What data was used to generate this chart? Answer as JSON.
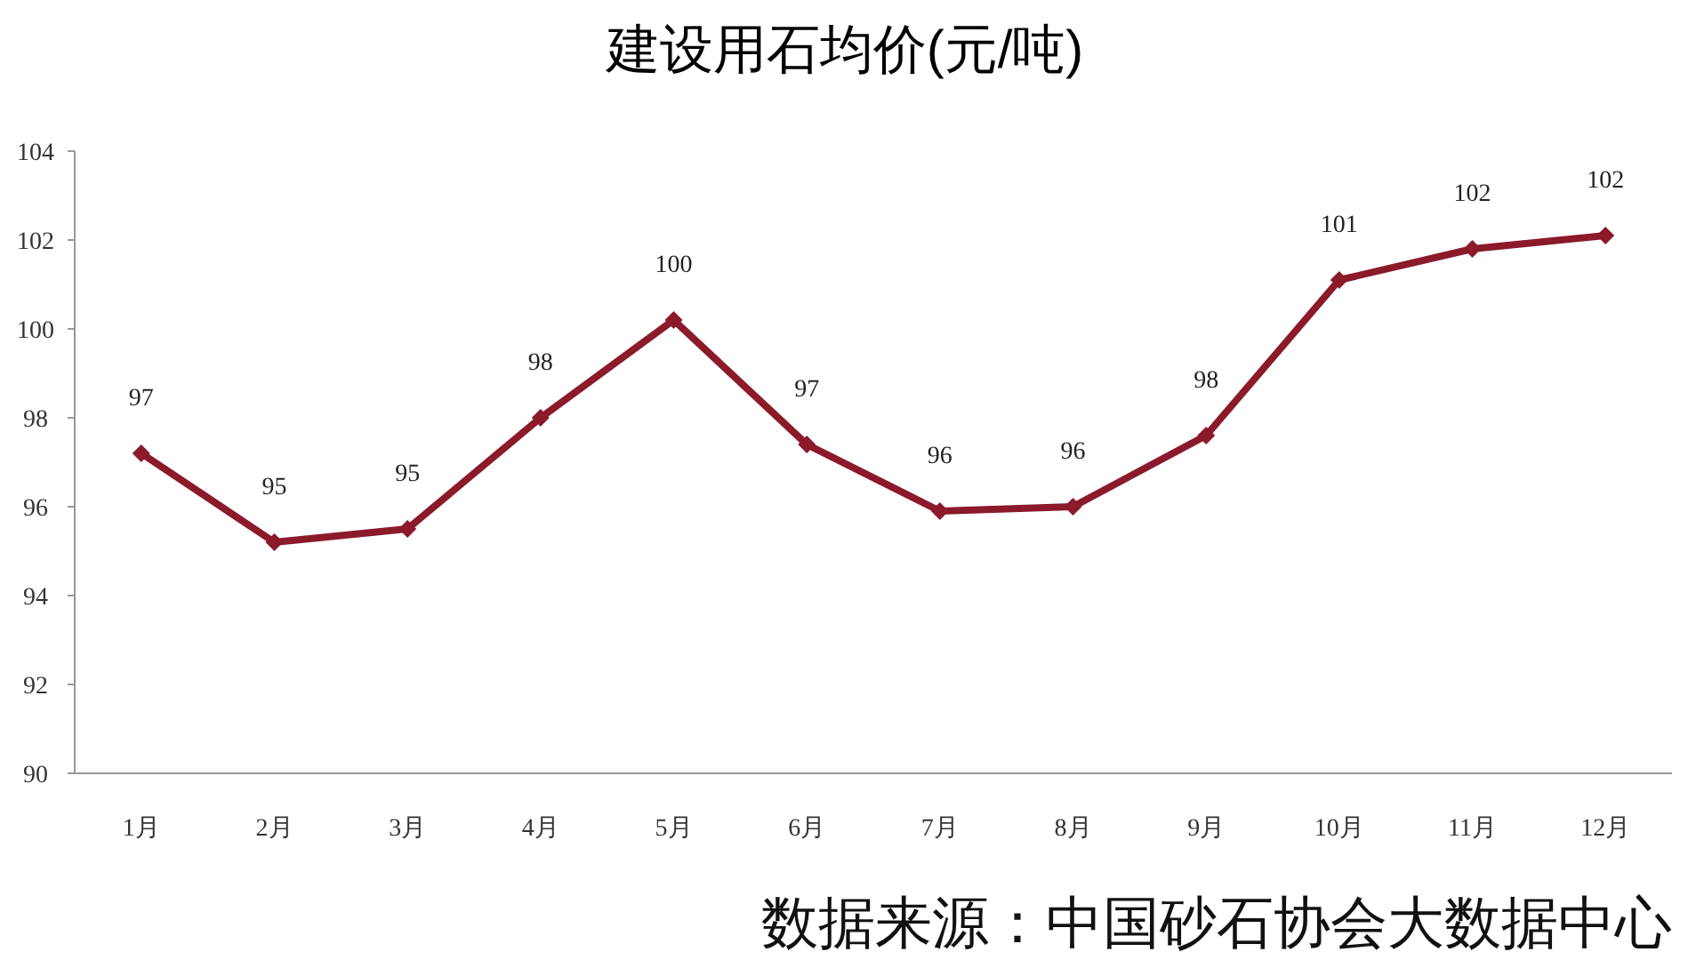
{
  "chart_data": {
    "type": "line",
    "title": "建设用石均价(元/吨)",
    "categories": [
      "1月",
      "2月",
      "3月",
      "4月",
      "5月",
      "6月",
      "7月",
      "8月",
      "9月",
      "10月",
      "11月",
      "12月"
    ],
    "series": [
      {
        "color": "#8b1a2b",
        "values": [
          97.2,
          95.2,
          95.5,
          98.0,
          100.2,
          97.4,
          95.9,
          96.0,
          97.6,
          101.1,
          101.8,
          102.1
        ],
        "value_labels": [
          "97",
          "95",
          "95",
          "98",
          "100",
          "97",
          "96",
          "96",
          "98",
          "101",
          "102",
          "102"
        ]
      }
    ],
    "ylim": [
      90,
      104
    ],
    "yticks": [
      90,
      92,
      94,
      96,
      98,
      100,
      102,
      104
    ],
    "grid": false,
    "marker": "diamond",
    "line_style": "solid",
    "annotations": [
      "数据来源：中国砂石协会大数据中心"
    ]
  }
}
